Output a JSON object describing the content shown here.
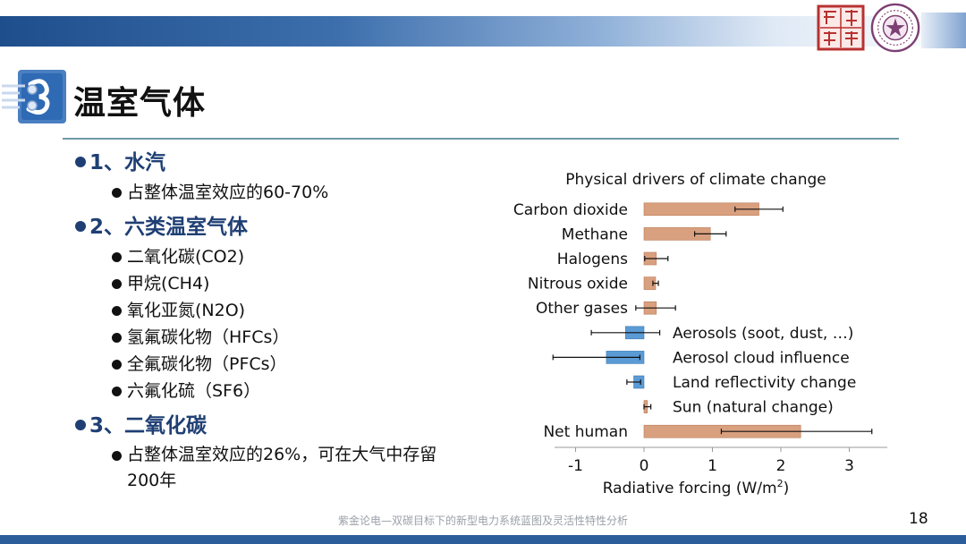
{
  "slide": {
    "title": "温室气体",
    "footer": "紫金论电—双碳目标下的新型电力系统蓝图及灵活性特性分析",
    "page_number": "18"
  },
  "outline": [
    {
      "heading": "1、水汽",
      "items": [
        "占整体温室效应的60-70%"
      ]
    },
    {
      "heading": "2、六类温室气体",
      "items": [
        "二氧化碳(CO2)",
        "甲烷(CH4)",
        "氧化亚氮(N2O)",
        "氢氟碳化物（HFCs）",
        "全氟碳化物（PFCs）",
        "六氟化硫（SF6）"
      ]
    },
    {
      "heading": "3、二氧化碳",
      "items": [
        "占整体温室效应的26%，可在大气中存留200年"
      ]
    }
  ],
  "colors": {
    "positive_bar": "#d9a07f",
    "negative_bar": "#5a9bd5",
    "heading": "#1f3f74"
  },
  "chart_data": {
    "type": "bar",
    "orientation": "horizontal",
    "title": "Physical drivers of climate change",
    "xlabel_main": "Radiative forcing (W/m",
    "xlabel_sup": "2",
    "xlabel_tail": ")",
    "xlim": [
      -1,
      3.5
    ],
    "xticks": [
      "-1",
      "0",
      "1",
      "2",
      "3"
    ],
    "categories": [
      "Carbon dioxide",
      "Methane",
      "Halogens",
      "Nitrous oxide",
      "Other gases",
      "Aerosols (soot, dust, …)",
      "Aerosol cloud influence",
      "Land reflectivity change",
      "Sun (natural change)",
      "Net human"
    ],
    "values": [
      1.68,
      0.97,
      0.18,
      0.17,
      0.18,
      -0.27,
      -0.55,
      -0.15,
      0.05,
      2.29
    ],
    "error_low": [
      1.33,
      0.74,
      0.01,
      0.13,
      -0.12,
      -0.77,
      -1.33,
      -0.25,
      0.0,
      1.13
    ],
    "error_high": [
      2.03,
      1.2,
      0.35,
      0.21,
      0.46,
      0.23,
      -0.06,
      -0.05,
      0.1,
      3.33
    ],
    "label_side": [
      "left",
      "left",
      "left",
      "left",
      "left",
      "right",
      "right",
      "right",
      "right",
      "left"
    ],
    "grid": false,
    "legend": "none"
  }
}
